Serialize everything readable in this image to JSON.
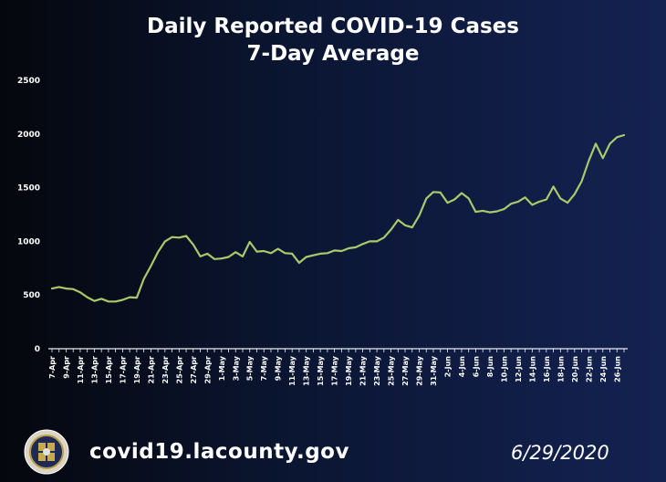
{
  "header": {
    "title_line1": "Daily Reported COVID-19 Cases",
    "title_line2": "7-Day Average"
  },
  "footer": {
    "url": "covid19.lacounty.gov",
    "date": "6/29/2020",
    "seal_icon": "county-seal-icon"
  },
  "colors": {
    "line": "#a9c96a",
    "axis": "#e9ecf2",
    "text": "#ffffff"
  },
  "chart_data": {
    "type": "line",
    "title": "Daily Reported COVID-19 Cases 7-Day Average",
    "xlabel": "",
    "ylabel": "",
    "ylim": [
      0,
      2500
    ],
    "yticks": [
      0,
      500,
      1000,
      1500,
      2000,
      2500
    ],
    "grid": false,
    "tick_labels": [
      "7-Apr",
      "9-Apr",
      "11-Apr",
      "13-Apr",
      "15-Apr",
      "17-Apr",
      "19-Apr",
      "21-Apr",
      "23-Apr",
      "25-Apr",
      "27-Apr",
      "29-Apr",
      "1-May",
      "3-May",
      "5-May",
      "7-May",
      "9-May",
      "11-May",
      "13-May",
      "15-May",
      "17-May",
      "19-May",
      "21-May",
      "23-May",
      "25-May",
      "27-May",
      "29-May",
      "31-May",
      "2-Jun",
      "4-Jun",
      "6-Jun",
      "8-Jun",
      "10-Jun",
      "12-Jun",
      "14-Jun",
      "16-Jun",
      "18-Jun",
      "20-Jun",
      "22-Jun",
      "24-Jun",
      "26-Jun"
    ],
    "x": [
      "7-Apr",
      "8-Apr",
      "9-Apr",
      "10-Apr",
      "11-Apr",
      "12-Apr",
      "13-Apr",
      "14-Apr",
      "15-Apr",
      "16-Apr",
      "17-Apr",
      "18-Apr",
      "19-Apr",
      "20-Apr",
      "21-Apr",
      "22-Apr",
      "23-Apr",
      "24-Apr",
      "25-Apr",
      "26-Apr",
      "27-Apr",
      "28-Apr",
      "29-Apr",
      "30-Apr",
      "1-May",
      "2-May",
      "3-May",
      "4-May",
      "5-May",
      "6-May",
      "7-May",
      "8-May",
      "9-May",
      "10-May",
      "11-May",
      "12-May",
      "13-May",
      "14-May",
      "15-May",
      "16-May",
      "17-May",
      "18-May",
      "19-May",
      "20-May",
      "21-May",
      "22-May",
      "23-May",
      "24-May",
      "25-May",
      "26-May",
      "27-May",
      "28-May",
      "29-May",
      "30-May",
      "31-May",
      "1-Jun",
      "2-Jun",
      "3-Jun",
      "4-Jun",
      "5-Jun",
      "6-Jun",
      "7-Jun",
      "8-Jun",
      "9-Jun",
      "10-Jun",
      "11-Jun",
      "12-Jun",
      "13-Jun",
      "14-Jun",
      "15-Jun",
      "16-Jun",
      "17-Jun",
      "18-Jun",
      "19-Jun",
      "20-Jun",
      "21-Jun",
      "22-Jun",
      "23-Jun",
      "24-Jun",
      "25-Jun",
      "26-Jun",
      "27-Jun"
    ],
    "series": [
      {
        "values": [
          560,
          575,
          560,
          555,
          525,
          480,
          445,
          465,
          440,
          440,
          455,
          480,
          475,
          650,
          770,
          900,
          1000,
          1040,
          1035,
          1050,
          970,
          860,
          885,
          835,
          840,
          855,
          900,
          860,
          995,
          905,
          910,
          890,
          930,
          890,
          885,
          800,
          855,
          870,
          885,
          890,
          915,
          910,
          935,
          945,
          975,
          1000,
          1000,
          1035,
          1110,
          1200,
          1150,
          1130,
          1240,
          1400,
          1460,
          1455,
          1360,
          1390,
          1450,
          1400,
          1275,
          1285,
          1270,
          1280,
          1300,
          1350,
          1370,
          1410,
          1340,
          1370,
          1390,
          1510,
          1400,
          1360,
          1440,
          1560,
          1750,
          1910,
          1775,
          1910,
          1970,
          1990
        ]
      }
    ]
  }
}
